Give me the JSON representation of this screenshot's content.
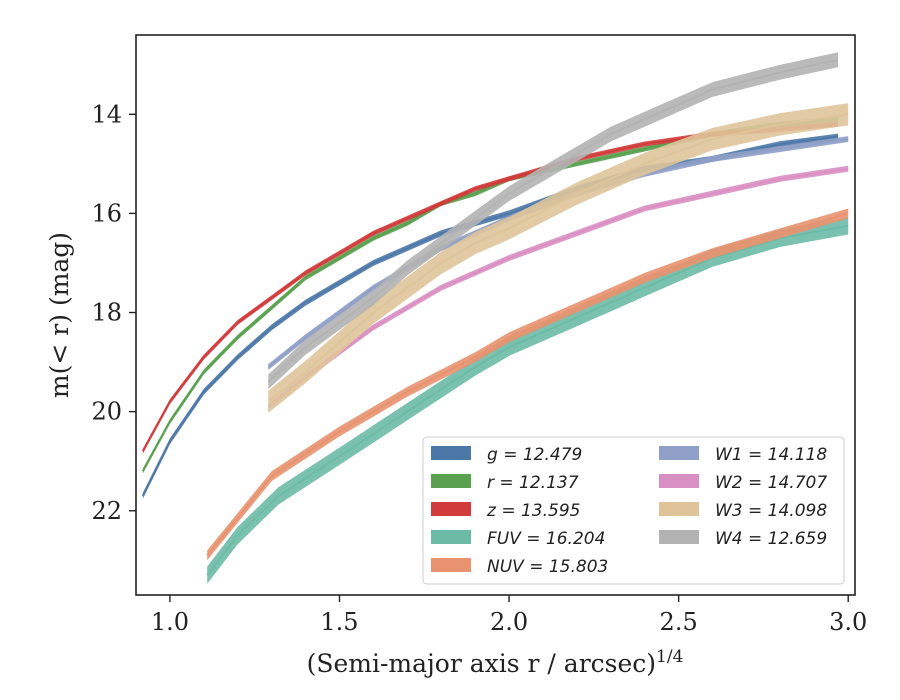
{
  "chart_data": {
    "type": "line",
    "xlabel": "(Semi-major axis r / arcsec)",
    "xlabel_superscript": "1/4",
    "ylabel": "m(< r) (mag)",
    "xlim": [
      0.9,
      3.02
    ],
    "ylim": [
      23.7,
      12.4
    ],
    "y_inverted": true,
    "x_ticks": [
      "1.0",
      "1.5",
      "2.0",
      "2.5",
      "3.0"
    ],
    "y_ticks": [
      "14",
      "16",
      "18",
      "20",
      "22"
    ],
    "grid": false,
    "legend_location": "lower-right",
    "series": [
      {
        "name": "g = 12.479",
        "color": "#4c78a8",
        "band_width": 0.12,
        "x": [
          0.92,
          1.0,
          1.1,
          1.2,
          1.3,
          1.4,
          1.5,
          1.6,
          1.7,
          1.8,
          1.9,
          2.0,
          2.2,
          2.4,
          2.6,
          2.8,
          2.97
        ],
        "y": [
          21.7,
          20.6,
          19.6,
          18.9,
          18.3,
          17.8,
          17.4,
          17.0,
          16.7,
          16.4,
          16.2,
          16.0,
          15.5,
          15.1,
          14.9,
          14.6,
          14.45
        ]
      },
      {
        "name": "r = 12.137",
        "color": "#59a14f",
        "band_width": 0.1,
        "x": [
          0.92,
          1.0,
          1.1,
          1.2,
          1.3,
          1.4,
          1.5,
          1.6,
          1.7,
          1.8,
          1.9,
          2.0,
          2.2,
          2.4,
          2.6,
          2.8,
          2.97
        ],
        "y": [
          21.2,
          20.2,
          19.2,
          18.5,
          17.9,
          17.3,
          16.9,
          16.5,
          16.2,
          15.8,
          15.6,
          15.3,
          15.0,
          14.7,
          14.4,
          14.2,
          14.1
        ]
      },
      {
        "name": "z = 13.595",
        "color": "#d13b3b",
        "band_width": 0.1,
        "x": [
          0.92,
          1.0,
          1.1,
          1.2,
          1.3,
          1.4,
          1.5,
          1.6,
          1.7,
          1.8,
          1.9,
          2.0,
          2.2,
          2.4,
          2.6,
          2.8,
          2.97
        ],
        "y": [
          20.8,
          19.8,
          18.9,
          18.2,
          17.7,
          17.2,
          16.8,
          16.4,
          16.1,
          15.8,
          15.5,
          15.3,
          14.9,
          14.6,
          14.4,
          14.3,
          14.2
        ]
      },
      {
        "name": "FUV = 16.204",
        "color": "#6cbba6",
        "band_width": 0.35,
        "x": [
          1.11,
          1.2,
          1.32,
          1.5,
          1.7,
          1.9,
          2.0,
          2.2,
          2.4,
          2.6,
          2.8,
          3.0
        ],
        "y": [
          23.3,
          22.5,
          21.7,
          20.9,
          20.0,
          19.1,
          18.7,
          18.1,
          17.5,
          16.9,
          16.5,
          16.25
        ]
      },
      {
        "name": "NUV = 15.803",
        "color": "#e8926f",
        "band_width": 0.2,
        "x": [
          1.11,
          1.3,
          1.5,
          1.7,
          1.9,
          2.0,
          2.2,
          2.4,
          2.6,
          2.8,
          3.0
        ],
        "y": [
          22.9,
          21.3,
          20.4,
          19.6,
          18.9,
          18.5,
          17.9,
          17.3,
          16.8,
          16.4,
          16.0
        ]
      },
      {
        "name": "W1 = 14.118",
        "color": "#8f9fc7",
        "band_width": 0.12,
        "x": [
          1.29,
          1.4,
          1.5,
          1.6,
          1.7,
          1.8,
          1.9,
          2.0,
          2.2,
          2.4,
          2.6,
          2.8,
          3.0
        ],
        "y": [
          19.1,
          18.5,
          18.0,
          17.5,
          17.1,
          16.7,
          16.4,
          16.1,
          15.6,
          15.2,
          14.9,
          14.7,
          14.5
        ]
      },
      {
        "name": "W2 = 14.707",
        "color": "#d98fc2",
        "band_width": 0.12,
        "x": [
          1.29,
          1.4,
          1.5,
          1.6,
          1.7,
          1.8,
          1.9,
          2.0,
          2.2,
          2.4,
          2.6,
          2.8,
          3.0
        ],
        "y": [
          19.9,
          19.3,
          18.8,
          18.3,
          17.9,
          17.5,
          17.2,
          16.9,
          16.4,
          15.9,
          15.6,
          15.3,
          15.1
        ]
      },
      {
        "name": "W3 = 14.098",
        "color": "#dfc49a",
        "band_width": 0.45,
        "x": [
          1.29,
          1.4,
          1.5,
          1.6,
          1.7,
          1.8,
          1.9,
          2.0,
          2.2,
          2.4,
          2.6,
          2.8,
          3.0
        ],
        "y": [
          19.8,
          19.2,
          18.6,
          18.0,
          17.5,
          17.0,
          16.6,
          16.3,
          15.6,
          15.0,
          14.5,
          14.2,
          14.0
        ]
      },
      {
        "name": "W4 = 12.659",
        "color": "#b3b3b3",
        "band_width": 0.3,
        "x": [
          1.29,
          1.4,
          1.5,
          1.6,
          1.7,
          1.8,
          1.9,
          2.0,
          2.1,
          2.2,
          2.3,
          2.4,
          2.5,
          2.6,
          2.8,
          2.97
        ],
        "y": [
          19.4,
          18.7,
          18.2,
          17.7,
          17.1,
          16.6,
          16.1,
          15.6,
          15.2,
          14.8,
          14.4,
          14.1,
          13.8,
          13.5,
          13.15,
          12.9
        ]
      }
    ]
  }
}
